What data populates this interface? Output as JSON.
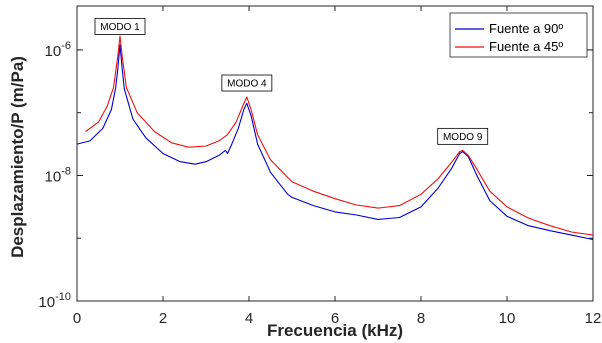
{
  "chart_data": {
    "type": "line",
    "title": "",
    "xlabel": "Frecuencia (kHz)",
    "ylabel": "Desplazamiento/P (m/Pa)",
    "xlim": [
      0,
      12
    ],
    "ylim_log10": [
      -10,
      -5.3
    ],
    "yscale": "log",
    "grid": false,
    "legend_position": "top-right",
    "x_ticks": [
      {
        "value": 0,
        "label": "0"
      },
      {
        "value": 2,
        "label": "2"
      },
      {
        "value": 4,
        "label": "4"
      },
      {
        "value": 6,
        "label": "6"
      },
      {
        "value": 8,
        "label": "8"
      },
      {
        "value": 10,
        "label": "10"
      },
      {
        "value": 12,
        "label": "12"
      }
    ],
    "y_ticks": [
      {
        "exp": -6,
        "base": "10",
        "power": "-6"
      },
      {
        "exp": -8,
        "base": "10",
        "power": "-8"
      },
      {
        "exp": -10,
        "base": "10",
        "power": "-10"
      }
    ],
    "series": [
      {
        "name": "Fuente a 90º",
        "color": "#0000cc",
        "points": [
          [
            0.0,
            -7.5
          ],
          [
            0.3,
            -7.45
          ],
          [
            0.6,
            -7.25
          ],
          [
            0.8,
            -6.95
          ],
          [
            0.9,
            -6.6
          ],
          [
            0.95,
            -6.3
          ],
          [
            1.0,
            -5.92
          ],
          [
            1.05,
            -6.3
          ],
          [
            1.1,
            -6.62
          ],
          [
            1.3,
            -7.1
          ],
          [
            1.6,
            -7.4
          ],
          [
            2.0,
            -7.65
          ],
          [
            2.4,
            -7.78
          ],
          [
            2.75,
            -7.82
          ],
          [
            3.0,
            -7.78
          ],
          [
            3.3,
            -7.68
          ],
          [
            3.45,
            -7.6
          ],
          [
            3.5,
            -7.65
          ],
          [
            3.6,
            -7.5
          ],
          [
            3.75,
            -7.25
          ],
          [
            3.88,
            -6.95
          ],
          [
            3.95,
            -6.85
          ],
          [
            4.05,
            -7.05
          ],
          [
            4.2,
            -7.5
          ],
          [
            4.5,
            -7.95
          ],
          [
            4.9,
            -8.3
          ],
          [
            5.0,
            -8.35
          ],
          [
            5.5,
            -8.48
          ],
          [
            6.0,
            -8.58
          ],
          [
            6.5,
            -8.63
          ],
          [
            7.0,
            -8.7
          ],
          [
            7.5,
            -8.67
          ],
          [
            8.0,
            -8.5
          ],
          [
            8.4,
            -8.2
          ],
          [
            8.7,
            -7.9
          ],
          [
            8.9,
            -7.65
          ],
          [
            8.97,
            -7.62
          ],
          [
            9.1,
            -7.7
          ],
          [
            9.3,
            -8.0
          ],
          [
            9.6,
            -8.4
          ],
          [
            10.0,
            -8.65
          ],
          [
            10.5,
            -8.8
          ],
          [
            11.0,
            -8.88
          ],
          [
            11.5,
            -8.95
          ],
          [
            12.0,
            -9.02
          ]
        ]
      },
      {
        "name": "Fuente a 45º",
        "color": "#ee1111",
        "points": [
          [
            0.2,
            -7.3
          ],
          [
            0.5,
            -7.15
          ],
          [
            0.7,
            -6.9
          ],
          [
            0.85,
            -6.6
          ],
          [
            0.95,
            -6.1
          ],
          [
            1.0,
            -5.78
          ],
          [
            1.05,
            -6.1
          ],
          [
            1.15,
            -6.6
          ],
          [
            1.4,
            -7.0
          ],
          [
            1.8,
            -7.3
          ],
          [
            2.2,
            -7.48
          ],
          [
            2.6,
            -7.55
          ],
          [
            3.0,
            -7.53
          ],
          [
            3.3,
            -7.45
          ],
          [
            3.5,
            -7.35
          ],
          [
            3.7,
            -7.15
          ],
          [
            3.85,
            -6.9
          ],
          [
            3.95,
            -6.75
          ],
          [
            4.05,
            -6.95
          ],
          [
            4.2,
            -7.35
          ],
          [
            4.5,
            -7.75
          ],
          [
            5.0,
            -8.1
          ],
          [
            5.5,
            -8.25
          ],
          [
            6.0,
            -8.37
          ],
          [
            6.5,
            -8.47
          ],
          [
            7.0,
            -8.52
          ],
          [
            7.5,
            -8.48
          ],
          [
            8.0,
            -8.3
          ],
          [
            8.4,
            -8.05
          ],
          [
            8.7,
            -7.8
          ],
          [
            8.9,
            -7.62
          ],
          [
            8.97,
            -7.6
          ],
          [
            9.1,
            -7.68
          ],
          [
            9.3,
            -7.9
          ],
          [
            9.6,
            -8.25
          ],
          [
            10.0,
            -8.5
          ],
          [
            10.5,
            -8.68
          ],
          [
            11.0,
            -8.8
          ],
          [
            11.5,
            -8.9
          ],
          [
            12.0,
            -8.95
          ]
        ]
      }
    ],
    "annotations": [
      {
        "text": "MODO 1",
        "x": 1.0,
        "y_exp": -5.85
      },
      {
        "text": "MODO 4",
        "x": 3.95,
        "y_exp": -6.75
      },
      {
        "text": "MODO 9",
        "x": 8.97,
        "y_exp": -7.6
      }
    ]
  }
}
